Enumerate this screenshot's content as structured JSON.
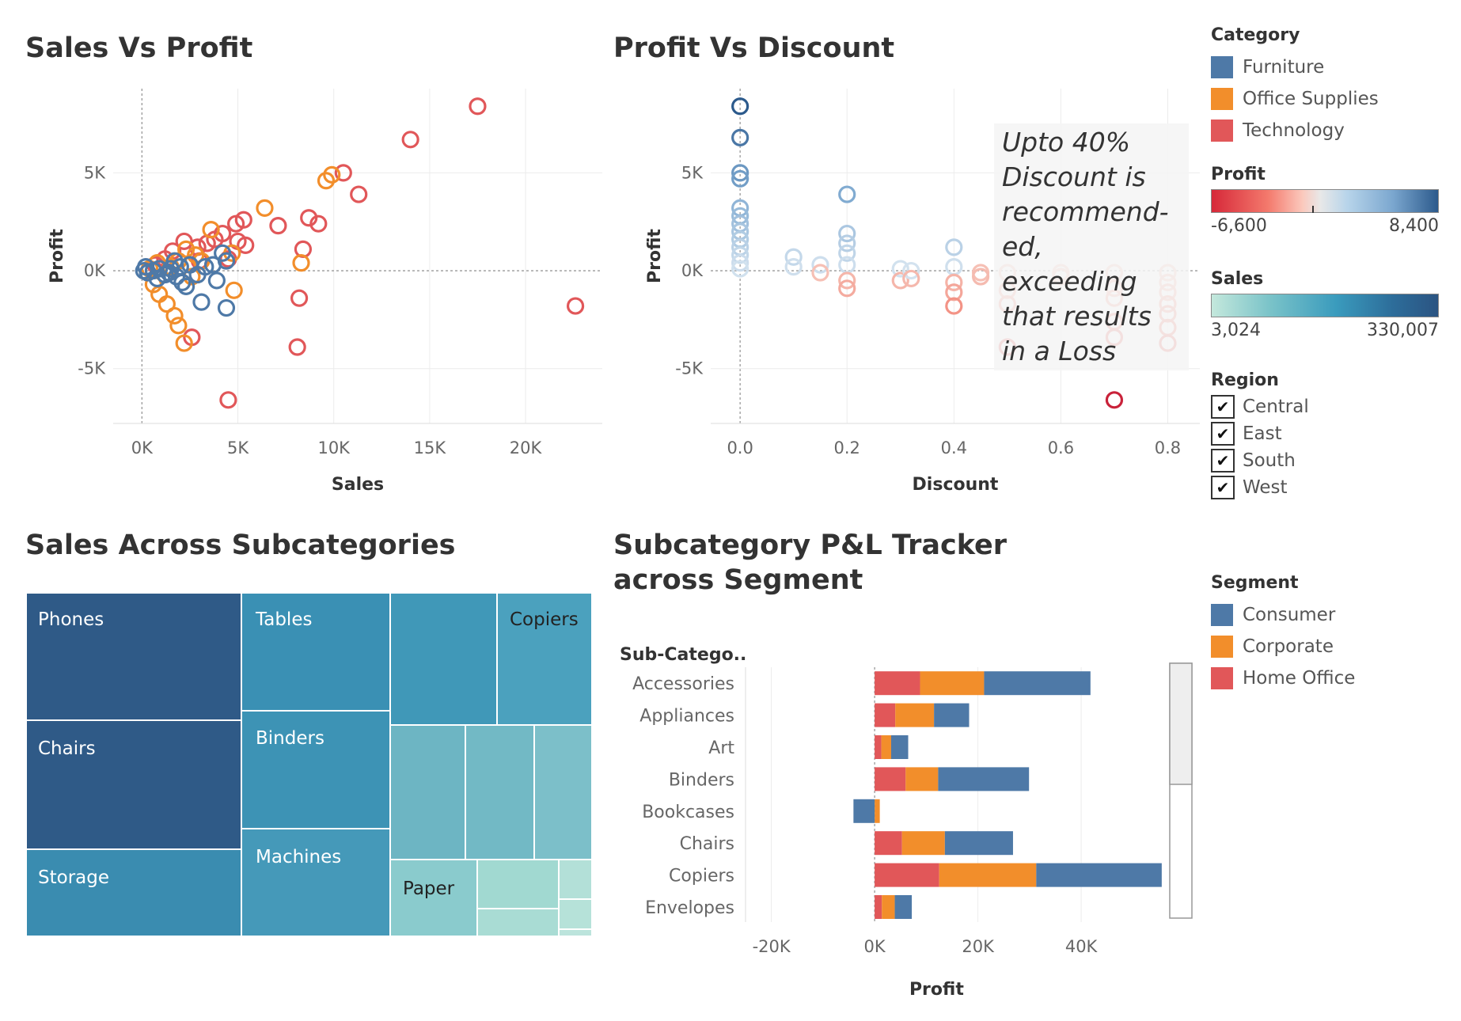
{
  "titles": {
    "sales_vs_profit": "Sales Vs Profit",
    "profit_vs_discount": "Profit Vs Discount",
    "sales_subcategories": "Sales Across Subcategories",
    "pl_tracker": "Subcategory P&L Tracker across Segment"
  },
  "annotation": "Upto 40% Discount is recommend-ed, exceeding that results in a Loss",
  "legends": {
    "category": {
      "title": "Category",
      "items": [
        {
          "label": "Furniture",
          "color": "#4e79a7"
        },
        {
          "label": "Office Supplies",
          "color": "#f28e2b"
        },
        {
          "label": "Technology",
          "color": "#e15759"
        }
      ]
    },
    "profit": {
      "title": "Profit",
      "min": "-6,600",
      "max": "8,400"
    },
    "sales": {
      "title": "Sales",
      "min": "3,024",
      "max": "330,007"
    },
    "region": {
      "title": "Region",
      "items": [
        "Central",
        "East",
        "South",
        "West"
      ],
      "checkmark": "✔"
    },
    "segment": {
      "title": "Segment",
      "items": [
        {
          "label": "Consumer",
          "color": "#4e79a7"
        },
        {
          "label": "Corporate",
          "color": "#f28e2b"
        },
        {
          "label": "Home Office",
          "color": "#e15759"
        }
      ]
    }
  },
  "chart_data": [
    {
      "type": "scatter",
      "title": "Sales Vs Profit",
      "xlabel": "Sales",
      "ylabel": "Profit",
      "xlim": [
        -1500,
        24000
      ],
      "ylim": [
        -7800,
        9300
      ],
      "xticks": [
        {
          "v": 0,
          "t": "0K"
        },
        {
          "v": 5000,
          "t": "5K"
        },
        {
          "v": 10000,
          "t": "10K"
        },
        {
          "v": 15000,
          "t": "15K"
        },
        {
          "v": 20000,
          "t": "20K"
        }
      ],
      "yticks": [
        {
          "v": -5000,
          "t": "-5K"
        },
        {
          "v": 0,
          "t": "0K"
        },
        {
          "v": 5000,
          "t": "5K"
        }
      ],
      "series": [
        {
          "name": "Technology",
          "color": "#e15759",
          "points": [
            [
              17500,
              8400
            ],
            [
              14000,
              6700
            ],
            [
              10500,
              5000
            ],
            [
              11300,
              3900
            ],
            [
              8700,
              2700
            ],
            [
              9200,
              2400
            ],
            [
              7100,
              2300
            ],
            [
              8400,
              1100
            ],
            [
              4900,
              2400
            ],
            [
              5300,
              2600
            ],
            [
              5000,
              1500
            ],
            [
              5400,
              1300
            ],
            [
              22600,
              -1800
            ],
            [
              8200,
              -1400
            ],
            [
              8100,
              -3900
            ],
            [
              4500,
              -6600
            ],
            [
              2600,
              -3400
            ],
            [
              3800,
              1600
            ],
            [
              4200,
              1900
            ],
            [
              3400,
              1400
            ],
            [
              2900,
              1200
            ],
            [
              2200,
              1500
            ],
            [
              1600,
              1000
            ],
            [
              1200,
              600
            ],
            [
              700,
              300
            ],
            [
              3000,
              500
            ],
            [
              4500,
              600
            ]
          ]
        },
        {
          "name": "Office Supplies",
          "color": "#f28e2b",
          "points": [
            [
              9900,
              4900
            ],
            [
              9600,
              4600
            ],
            [
              6400,
              3200
            ],
            [
              8300,
              400
            ],
            [
              4800,
              -1000
            ],
            [
              2200,
              -3700
            ],
            [
              1900,
              -2800
            ],
            [
              1700,
              -2300
            ],
            [
              1300,
              -1700
            ],
            [
              900,
              -1200
            ],
            [
              600,
              -700
            ],
            [
              3100,
              500
            ],
            [
              3600,
              2100
            ],
            [
              2800,
              800
            ],
            [
              2300,
              1100
            ],
            [
              1900,
              500
            ],
            [
              1500,
              200
            ],
            [
              800,
              400
            ],
            [
              400,
              100
            ],
            [
              2600,
              -300
            ],
            [
              4700,
              900
            ]
          ]
        },
        {
          "name": "Furniture",
          "color": "#4e79a7",
          "points": [
            [
              4400,
              -1900
            ],
            [
              3100,
              -1600
            ],
            [
              4200,
              900
            ],
            [
              4400,
              500
            ],
            [
              3700,
              300
            ],
            [
              3300,
              200
            ],
            [
              2900,
              -200
            ],
            [
              2500,
              300
            ],
            [
              2100,
              -600
            ],
            [
              1800,
              -300
            ],
            [
              1500,
              100
            ],
            [
              1200,
              -200
            ],
            [
              900,
              100
            ],
            [
              600,
              0
            ],
            [
              300,
              -100
            ],
            [
              100,
              0
            ],
            [
              2000,
              200
            ],
            [
              1700,
              500
            ],
            [
              1400,
              -100
            ],
            [
              2300,
              -800
            ],
            [
              3900,
              -500
            ],
            [
              800,
              -400
            ],
            [
              200,
              200
            ]
          ]
        }
      ]
    },
    {
      "type": "scatter",
      "title": "Profit Vs Discount",
      "xlabel": "Discount",
      "ylabel": "Profit",
      "xlim": [
        -0.055,
        0.86
      ],
      "ylim": [
        -7800,
        9300
      ],
      "xticks": [
        {
          "v": 0,
          "t": "0.0"
        },
        {
          "v": 0.2,
          "t": "0.2"
        },
        {
          "v": 0.4,
          "t": "0.4"
        },
        {
          "v": 0.6,
          "t": "0.6"
        },
        {
          "v": 0.8,
          "t": "0.8"
        }
      ],
      "yticks": [
        {
          "v": -5000,
          "t": "-5K"
        },
        {
          "v": 0,
          "t": "0K"
        },
        {
          "v": 5000,
          "t": "5K"
        }
      ],
      "points": [
        [
          0,
          8400
        ],
        [
          0,
          6800
        ],
        [
          0,
          5000
        ],
        [
          0,
          4700
        ],
        [
          0,
          3200
        ],
        [
          0,
          2800
        ],
        [
          0,
          2400
        ],
        [
          0,
          2000
        ],
        [
          0,
          1600
        ],
        [
          0,
          1200
        ],
        [
          0,
          800
        ],
        [
          0,
          400
        ],
        [
          0,
          100
        ],
        [
          0.1,
          700
        ],
        [
          0.1,
          200
        ],
        [
          0.15,
          300
        ],
        [
          0.15,
          -100
        ],
        [
          0.2,
          3900
        ],
        [
          0.2,
          1900
        ],
        [
          0.2,
          1400
        ],
        [
          0.2,
          900
        ],
        [
          0.2,
          300
        ],
        [
          0.2,
          -500
        ],
        [
          0.2,
          -900
        ],
        [
          0.3,
          100
        ],
        [
          0.3,
          -500
        ],
        [
          0.32,
          0
        ],
        [
          0.32,
          -400
        ],
        [
          0.4,
          1200
        ],
        [
          0.4,
          200
        ],
        [
          0.4,
          -600
        ],
        [
          0.4,
          -1100
        ],
        [
          0.4,
          -1800
        ],
        [
          0.45,
          -100
        ],
        [
          0.45,
          -300
        ],
        [
          0.5,
          -100
        ],
        [
          0.5,
          -1000
        ],
        [
          0.5,
          -1700
        ],
        [
          0.5,
          -3900
        ],
        [
          0.6,
          -100
        ],
        [
          0.6,
          -300
        ],
        [
          0.7,
          -100
        ],
        [
          0.7,
          -900
        ],
        [
          0.7,
          -1400
        ],
        [
          0.7,
          -2600
        ],
        [
          0.7,
          -3400
        ],
        [
          0.7,
          -6600
        ],
        [
          0.8,
          -100
        ],
        [
          0.8,
          -600
        ],
        [
          0.8,
          -1100
        ],
        [
          0.8,
          -1700
        ],
        [
          0.8,
          -2200
        ],
        [
          0.8,
          -2900
        ],
        [
          0.8,
          -3700
        ]
      ]
    },
    {
      "type": "treemap",
      "title": "Sales Across Subcategories",
      "labels": [
        "Phones",
        "Chairs",
        "Storage",
        "Tables",
        "Binders",
        "Machines",
        "Copiers",
        "Paper"
      ]
    },
    {
      "type": "bar",
      "title": "Subcategory P&L Tracker across Segment",
      "ylabel": "Sub-Catego..",
      "xlabel": "Profit",
      "xlim": [
        -25000,
        57000
      ],
      "xticks": [
        {
          "v": -20000,
          "t": "-20K"
        },
        {
          "v": 0,
          "t": "0K"
        },
        {
          "v": 20000,
          "t": "20K"
        },
        {
          "v": 40000,
          "t": "40K"
        }
      ],
      "categories": [
        "Accessories",
        "Appliances",
        "Art",
        "Binders",
        "Bookcases",
        "Chairs",
        "Copiers",
        "Envelopes"
      ],
      "series": [
        {
          "name": "Home Office",
          "color": "#e15759",
          "values": [
            8800,
            4000,
            1300,
            6000,
            0,
            5300,
            12500,
            1400
          ]
        },
        {
          "name": "Corporate",
          "color": "#f28e2b",
          "values": [
            12400,
            7500,
            1900,
            6300,
            1000,
            8300,
            18800,
            2500
          ]
        },
        {
          "name": "Consumer",
          "color": "#4e79a7",
          "values": [
            20600,
            6800,
            3300,
            17600,
            -4100,
            13200,
            24300,
            3300
          ]
        }
      ]
    }
  ]
}
